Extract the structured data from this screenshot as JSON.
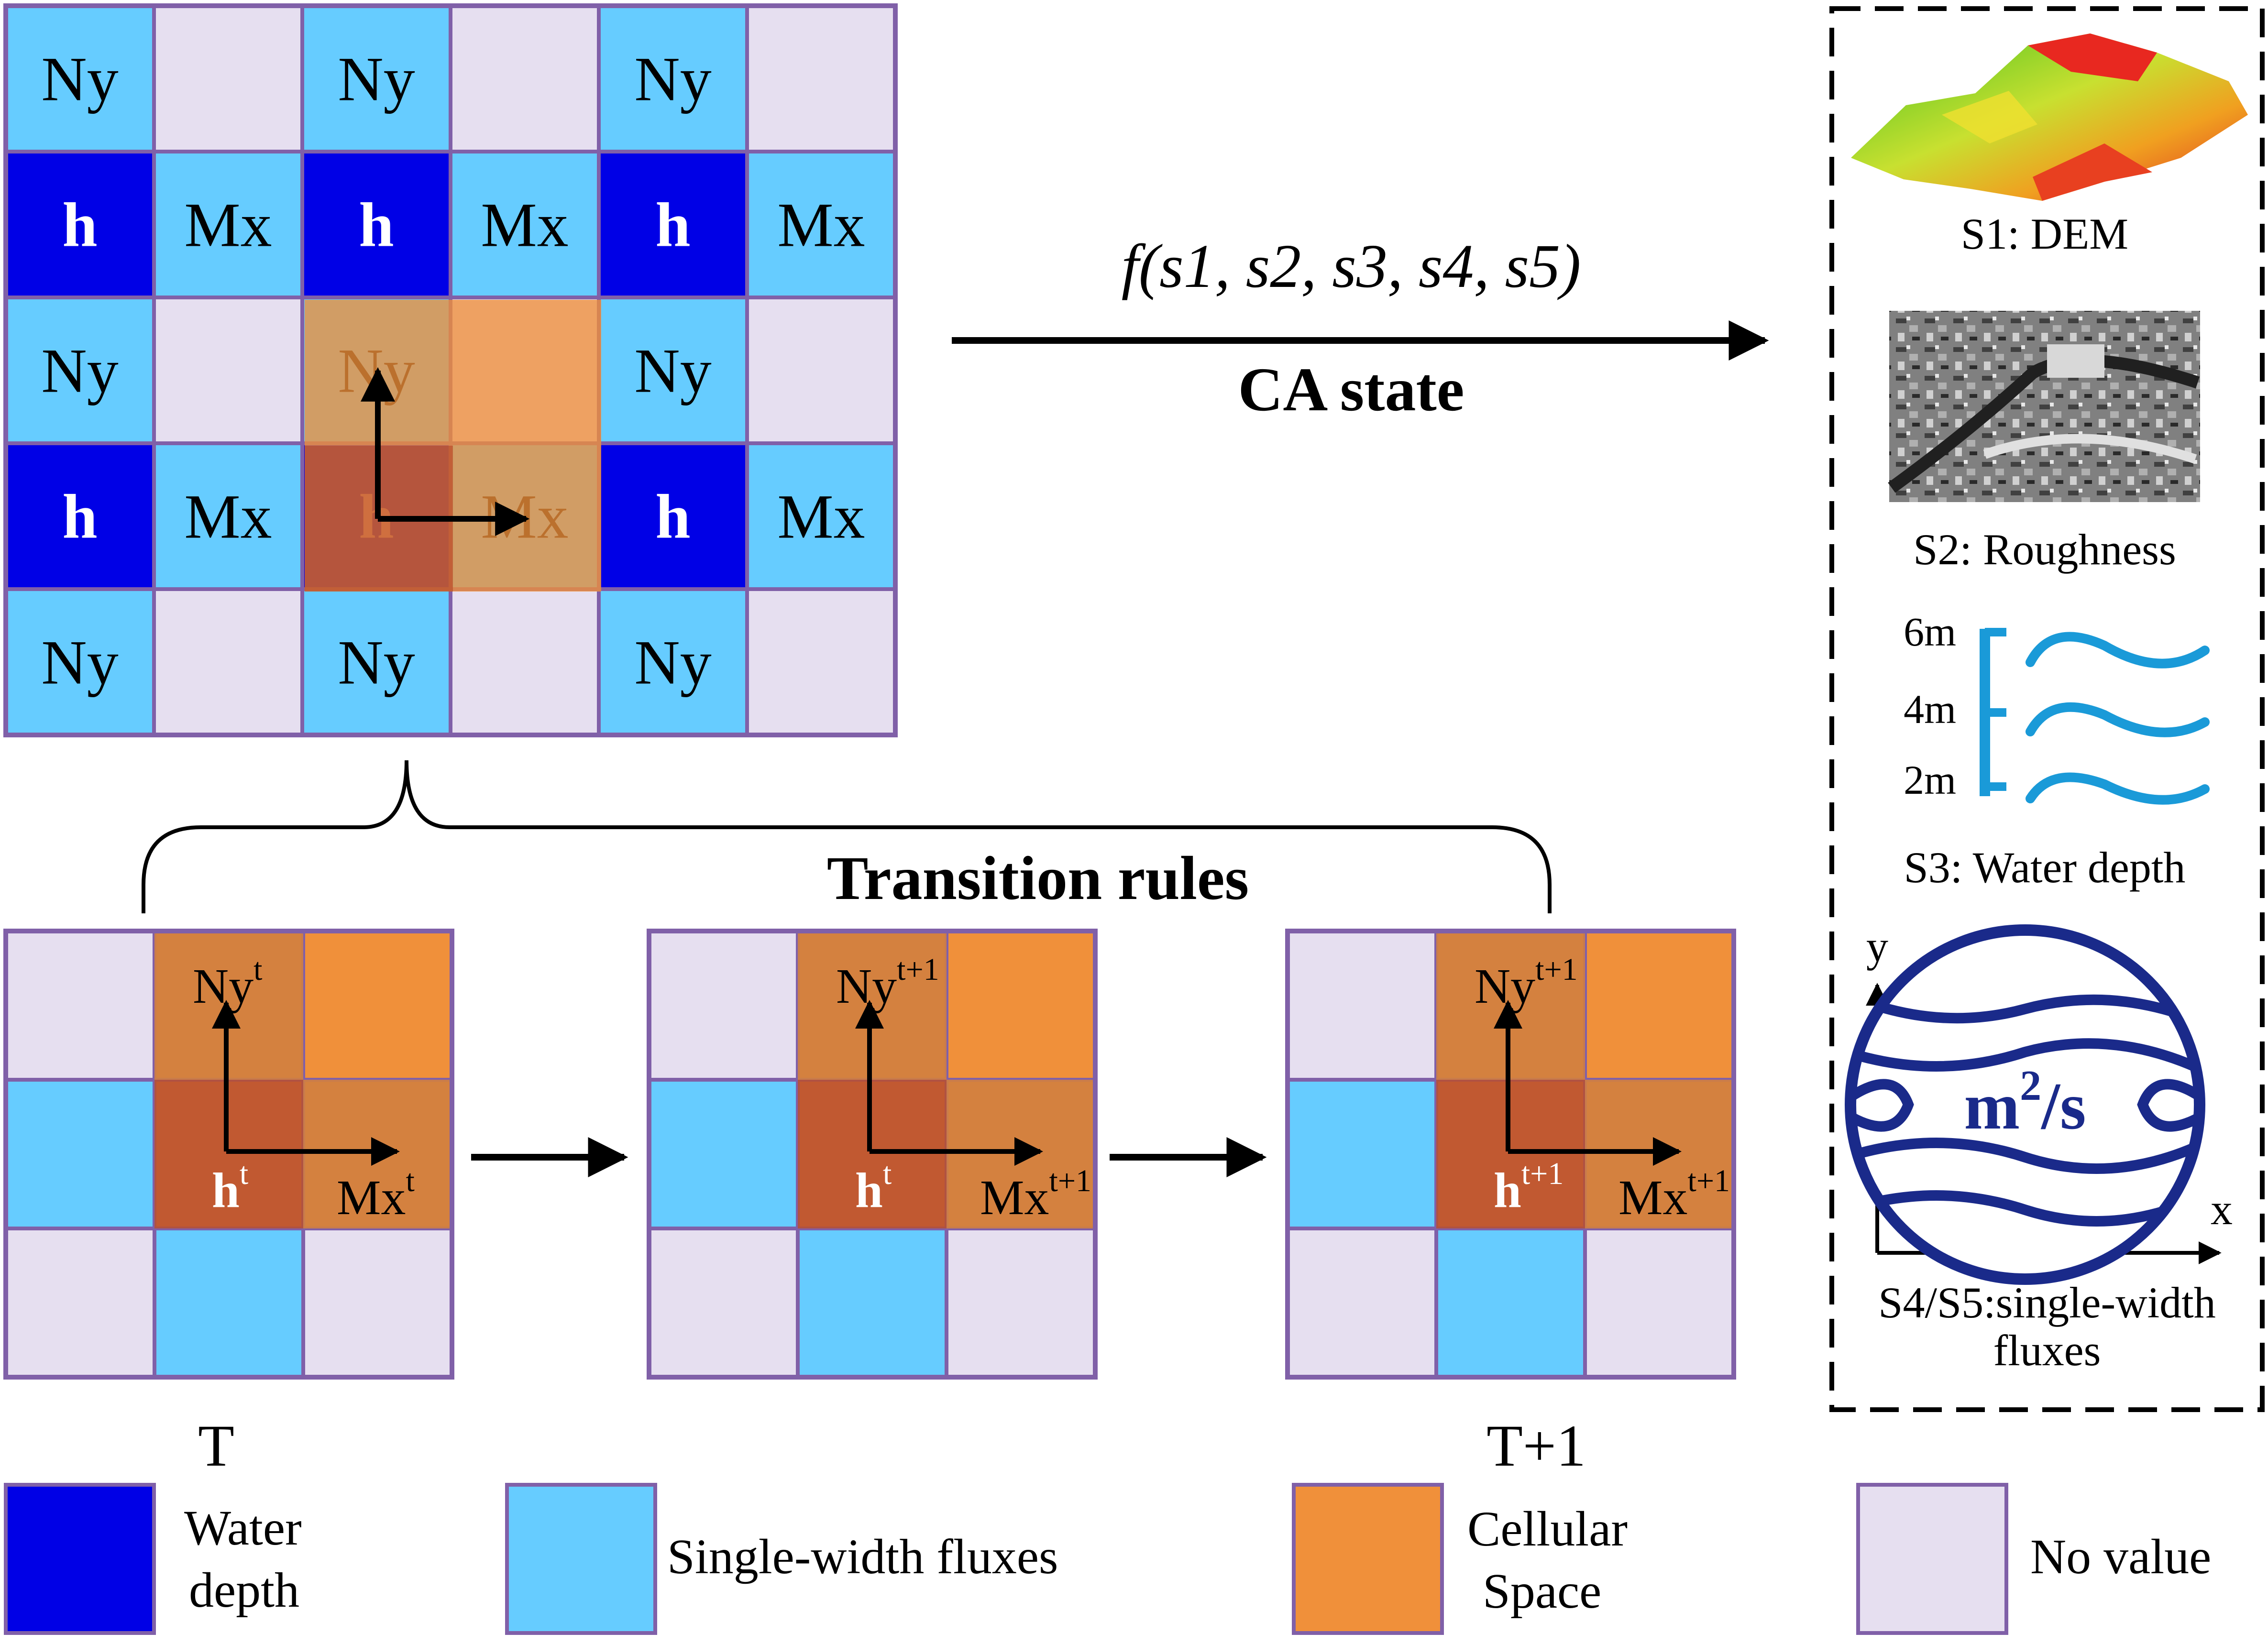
{
  "colors": {
    "water_depth": "#0000e6",
    "flux": "#66ccff",
    "cellular": "#f0903a",
    "no_value": "#e6dff0",
    "grid_line": "#8060a8",
    "overlay_dark": "#b85030",
    "overlay_mid": "#d08040",
    "dem_low": "#40c020",
    "dem_high": "#e03020",
    "wave": "#1a9ad8",
    "globe": "#1a2a8a"
  },
  "main_grid": {
    "rows": [
      [
        {
          "k": "ny",
          "t": "Ny"
        },
        {
          "k": "nv",
          "t": ""
        },
        {
          "k": "ny",
          "t": "Ny"
        },
        {
          "k": "nv",
          "t": ""
        },
        {
          "k": "ny",
          "t": "Ny"
        },
        {
          "k": "nv",
          "t": ""
        }
      ],
      [
        {
          "k": "h",
          "t": "h"
        },
        {
          "k": "mx",
          "t": "Mx"
        },
        {
          "k": "h",
          "t": "h"
        },
        {
          "k": "mx",
          "t": "Mx"
        },
        {
          "k": "h",
          "t": "h"
        },
        {
          "k": "mx",
          "t": "Mx"
        }
      ],
      [
        {
          "k": "ny",
          "t": "Ny"
        },
        {
          "k": "nv",
          "t": ""
        },
        {
          "k": "ny",
          "t": "Ny"
        },
        {
          "k": "nv",
          "t": ""
        },
        {
          "k": "ny",
          "t": "Ny"
        },
        {
          "k": "nv",
          "t": ""
        }
      ],
      [
        {
          "k": "h",
          "t": "h"
        },
        {
          "k": "mx",
          "t": "Mx"
        },
        {
          "k": "h",
          "t": "h"
        },
        {
          "k": "mx",
          "t": "Mx"
        },
        {
          "k": "h",
          "t": "h"
        },
        {
          "k": "mx",
          "t": "Mx"
        }
      ],
      [
        {
          "k": "ny",
          "t": "Ny"
        },
        {
          "k": "nv",
          "t": ""
        },
        {
          "k": "ny",
          "t": "Ny"
        },
        {
          "k": "nv",
          "t": ""
        },
        {
          "k": "ny",
          "t": "Ny"
        },
        {
          "k": "nv",
          "t": ""
        }
      ]
    ]
  },
  "function_label": "f(s1, s2, s3, s4, s5)",
  "ca_state_label": "CA state",
  "transition_rules_label": "Transition rules",
  "small_grids": [
    {
      "layout": [
        [
          "nv",
          "cs",
          "cs"
        ],
        [
          "fl",
          "cs",
          "cs"
        ],
        [
          "nv",
          "fl",
          "nv"
        ]
      ],
      "ny": {
        "base": "Ny",
        "sup": "t"
      },
      "h": {
        "base": "h",
        "sup": "t"
      },
      "mx": {
        "base": "Mx",
        "sup": "t"
      },
      "caption": "T"
    },
    {
      "layout": [
        [
          "nv",
          "cs",
          "cs"
        ],
        [
          "fl",
          "cs",
          "cs"
        ],
        [
          "nv",
          "fl",
          "nv"
        ]
      ],
      "ny": {
        "base": "Ny",
        "sup": "t+1"
      },
      "h": {
        "base": "h",
        "sup": "t"
      },
      "mx": {
        "base": "Mx",
        "sup": "t+1"
      },
      "caption": ""
    },
    {
      "layout": [
        [
          "nv",
          "cs",
          "cs"
        ],
        [
          "fl",
          "cs",
          "cs"
        ],
        [
          "nv",
          "fl",
          "nv"
        ]
      ],
      "ny": {
        "base": "Ny",
        "sup": "t+1"
      },
      "h": {
        "base": "h",
        "sup": "t+1"
      },
      "mx": {
        "base": "Mx",
        "sup": "t+1"
      },
      "caption": "T+1"
    }
  ],
  "state_panel": {
    "s1_label": "S1: DEM",
    "s2_label": "S2: Roughness",
    "s3_label": "S3: Water depth",
    "depth_ticks": [
      "6m",
      "4m",
      "2m"
    ],
    "s4_axis_x": "x",
    "s4_axis_y": "y",
    "s4_unit_base": "m",
    "s4_unit_sup": "2",
    "s4_unit_tail": "/s",
    "s4_label_line1": "S4/S5:single-width",
    "s4_label_line2": "fluxes"
  },
  "legend": [
    {
      "swatch": "water_depth",
      "lines": [
        "Water",
        "depth"
      ]
    },
    {
      "swatch": "flux",
      "lines": [
        "Single-width fluxes"
      ]
    },
    {
      "swatch": "cellular",
      "lines": [
        "Cellular",
        "Space"
      ]
    },
    {
      "swatch": "no_value",
      "lines": [
        "No value"
      ]
    }
  ]
}
